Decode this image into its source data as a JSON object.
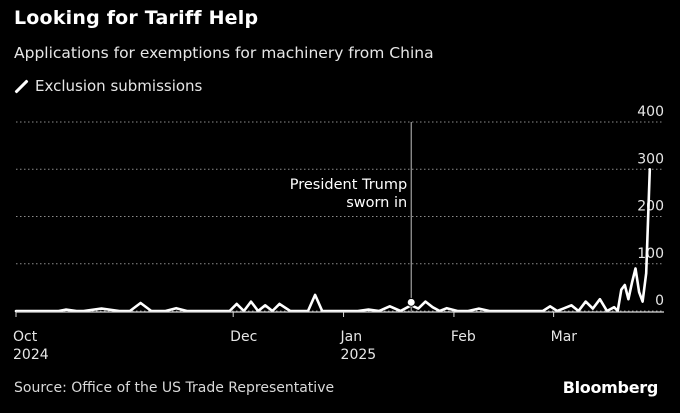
{
  "header": {
    "title": "Looking for Tariff Help",
    "subtitle": "Applications for exemptions for machinery from China"
  },
  "legend": {
    "label": "Exclusion submissions",
    "icon": "diagonal-line-swatch"
  },
  "footer": {
    "source": "Source: Office of the US Trade Representative",
    "logo": "Bloomberg"
  },
  "colors": {
    "background": "#000000",
    "series": "#ffffff",
    "grid": "#8c8c8c",
    "text": "#ffffff"
  },
  "chart_data": {
    "type": "line",
    "title": "Looking for Tariff Help",
    "subtitle": "Applications for exemptions for machinery from China",
    "xlabel": "",
    "ylabel": "",
    "ylim": [
      0,
      400
    ],
    "y_ticks": [
      0,
      100,
      200,
      300,
      400
    ],
    "y_axis_position": "right",
    "grid": true,
    "grid_style": "dotted",
    "legend_position": "top-left",
    "x_range": [
      "2024-10-01",
      "2025-04-01"
    ],
    "x_ticks": [
      {
        "date": "2024-10-01",
        "label": "Oct",
        "sublabel": "2024"
      },
      {
        "date": "2024-12-01",
        "label": "Dec",
        "sublabel": ""
      },
      {
        "date": "2025-01-01",
        "label": "Jan",
        "sublabel": "2025"
      },
      {
        "date": "2025-02-01",
        "label": "Feb",
        "sublabel": ""
      },
      {
        "date": "2025-03-01",
        "label": "Mar",
        "sublabel": ""
      }
    ],
    "annotations": [
      {
        "date": "2025-01-20",
        "text_lines": [
          "President Trump",
          "sworn in"
        ]
      }
    ],
    "series": [
      {
        "name": "Exclusion submissions",
        "x": [
          "2024-10-01",
          "2024-10-05",
          "2024-10-09",
          "2024-10-13",
          "2024-10-15",
          "2024-10-18",
          "2024-10-20",
          "2024-10-25",
          "2024-10-30",
          "2024-11-02",
          "2024-11-05",
          "2024-11-08",
          "2024-11-12",
          "2024-11-15",
          "2024-11-18",
          "2024-11-22",
          "2024-11-25",
          "2024-11-28",
          "2024-11-30",
          "2024-12-02",
          "2024-12-04",
          "2024-12-06",
          "2024-12-08",
          "2024-12-10",
          "2024-12-12",
          "2024-12-14",
          "2024-12-17",
          "2024-12-20",
          "2024-12-22",
          "2024-12-24",
          "2024-12-26",
          "2024-12-29",
          "2025-01-02",
          "2025-01-05",
          "2025-01-08",
          "2025-01-11",
          "2025-01-14",
          "2025-01-17",
          "2025-01-20",
          "2025-01-22",
          "2025-01-24",
          "2025-01-26",
          "2025-01-28",
          "2025-01-30",
          "2025-02-02",
          "2025-02-05",
          "2025-02-08",
          "2025-02-11",
          "2025-02-14",
          "2025-02-17",
          "2025-02-20",
          "2025-02-23",
          "2025-02-26",
          "2025-02-28",
          "2025-03-02",
          "2025-03-04",
          "2025-03-06",
          "2025-03-08",
          "2025-03-10",
          "2025-03-12",
          "2025-03-14",
          "2025-03-16",
          "2025-03-18",
          "2025-03-19",
          "2025-03-20",
          "2025-03-21",
          "2025-03-22",
          "2025-03-23",
          "2025-03-24",
          "2025-03-25",
          "2025-03-26",
          "2025-03-27",
          "2025-03-28"
        ],
        "values": [
          0,
          0,
          0,
          0,
          3,
          0,
          0,
          5,
          0,
          0,
          17,
          0,
          0,
          6,
          0,
          0,
          0,
          0,
          0,
          15,
          0,
          20,
          0,
          12,
          0,
          15,
          0,
          0,
          0,
          34,
          0,
          0,
          0,
          0,
          3,
          0,
          10,
          0,
          12,
          5,
          20,
          8,
          0,
          6,
          0,
          0,
          5,
          0,
          0,
          0,
          0,
          0,
          0,
          10,
          0,
          6,
          12,
          0,
          20,
          5,
          25,
          0,
          8,
          0,
          45,
          55,
          25,
          60,
          90,
          40,
          20,
          80,
          300
        ]
      }
    ]
  }
}
